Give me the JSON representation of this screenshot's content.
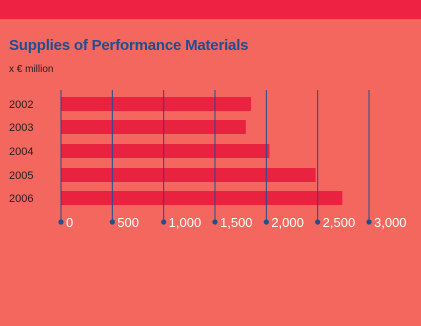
{
  "title": "Supplies of Performance Materials",
  "subtitle": "x € million",
  "colors": {
    "background": "#f4675f",
    "top_band": "#ee2242",
    "bar": "#e8223f",
    "axis": "#1d4f91",
    "title": "#1d4f91",
    "tick_text": "#ffffff"
  },
  "chart_data": {
    "type": "bar",
    "orientation": "horizontal",
    "title": "Supplies of Performance Materials",
    "unit": "x € million",
    "categories": [
      "2002",
      "2003",
      "2004",
      "2005",
      "2006"
    ],
    "values": [
      1850,
      1800,
      2030,
      2480,
      2740
    ],
    "xlim": [
      0,
      3000
    ],
    "xticks": [
      0,
      500,
      1000,
      1500,
      2000,
      2500,
      3000
    ],
    "xtick_labels": [
      "0",
      "500",
      "1,000",
      "1,500",
      "2,000",
      "2,500",
      "3,000"
    ],
    "grid": "vertical",
    "legend": "none"
  }
}
